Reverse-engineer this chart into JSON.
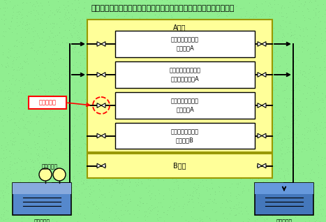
{
  "title": "伊方発電所１号機　原子炉補機冷却水冷却器の冷却用海水系統概略図",
  "bg_color": "#90EE90",
  "dot_color": "#7BC87B",
  "yellow_fill": "#FFFF99",
  "yellow_border": "#999900",
  "white_fill": "#FFFFFF",
  "a_system_label": "A系統",
  "b_system_label": "B系統",
  "component_labels": [
    "非常用ディーゼル\n発電機１A",
    "コントロールタワー\n空調用冷凍機１A",
    "原子炉補機冷却水\n冷却器１A",
    "原子炉補機冷却水\n冷却器１B"
  ],
  "leak_label": "漏えい箇所",
  "pump_label": "海水ポンプ",
  "intake_label": "取水ビット",
  "discharge_label": "放水ビット",
  "line_color": "#000000",
  "leak_box_color": "#FF0000",
  "leak_arrow_color": "#FF0000",
  "leak_circle_color": "#FF0000",
  "pump_fill": "#FFFF99",
  "water_color": "#5588CC",
  "water_dark": "#3366AA"
}
